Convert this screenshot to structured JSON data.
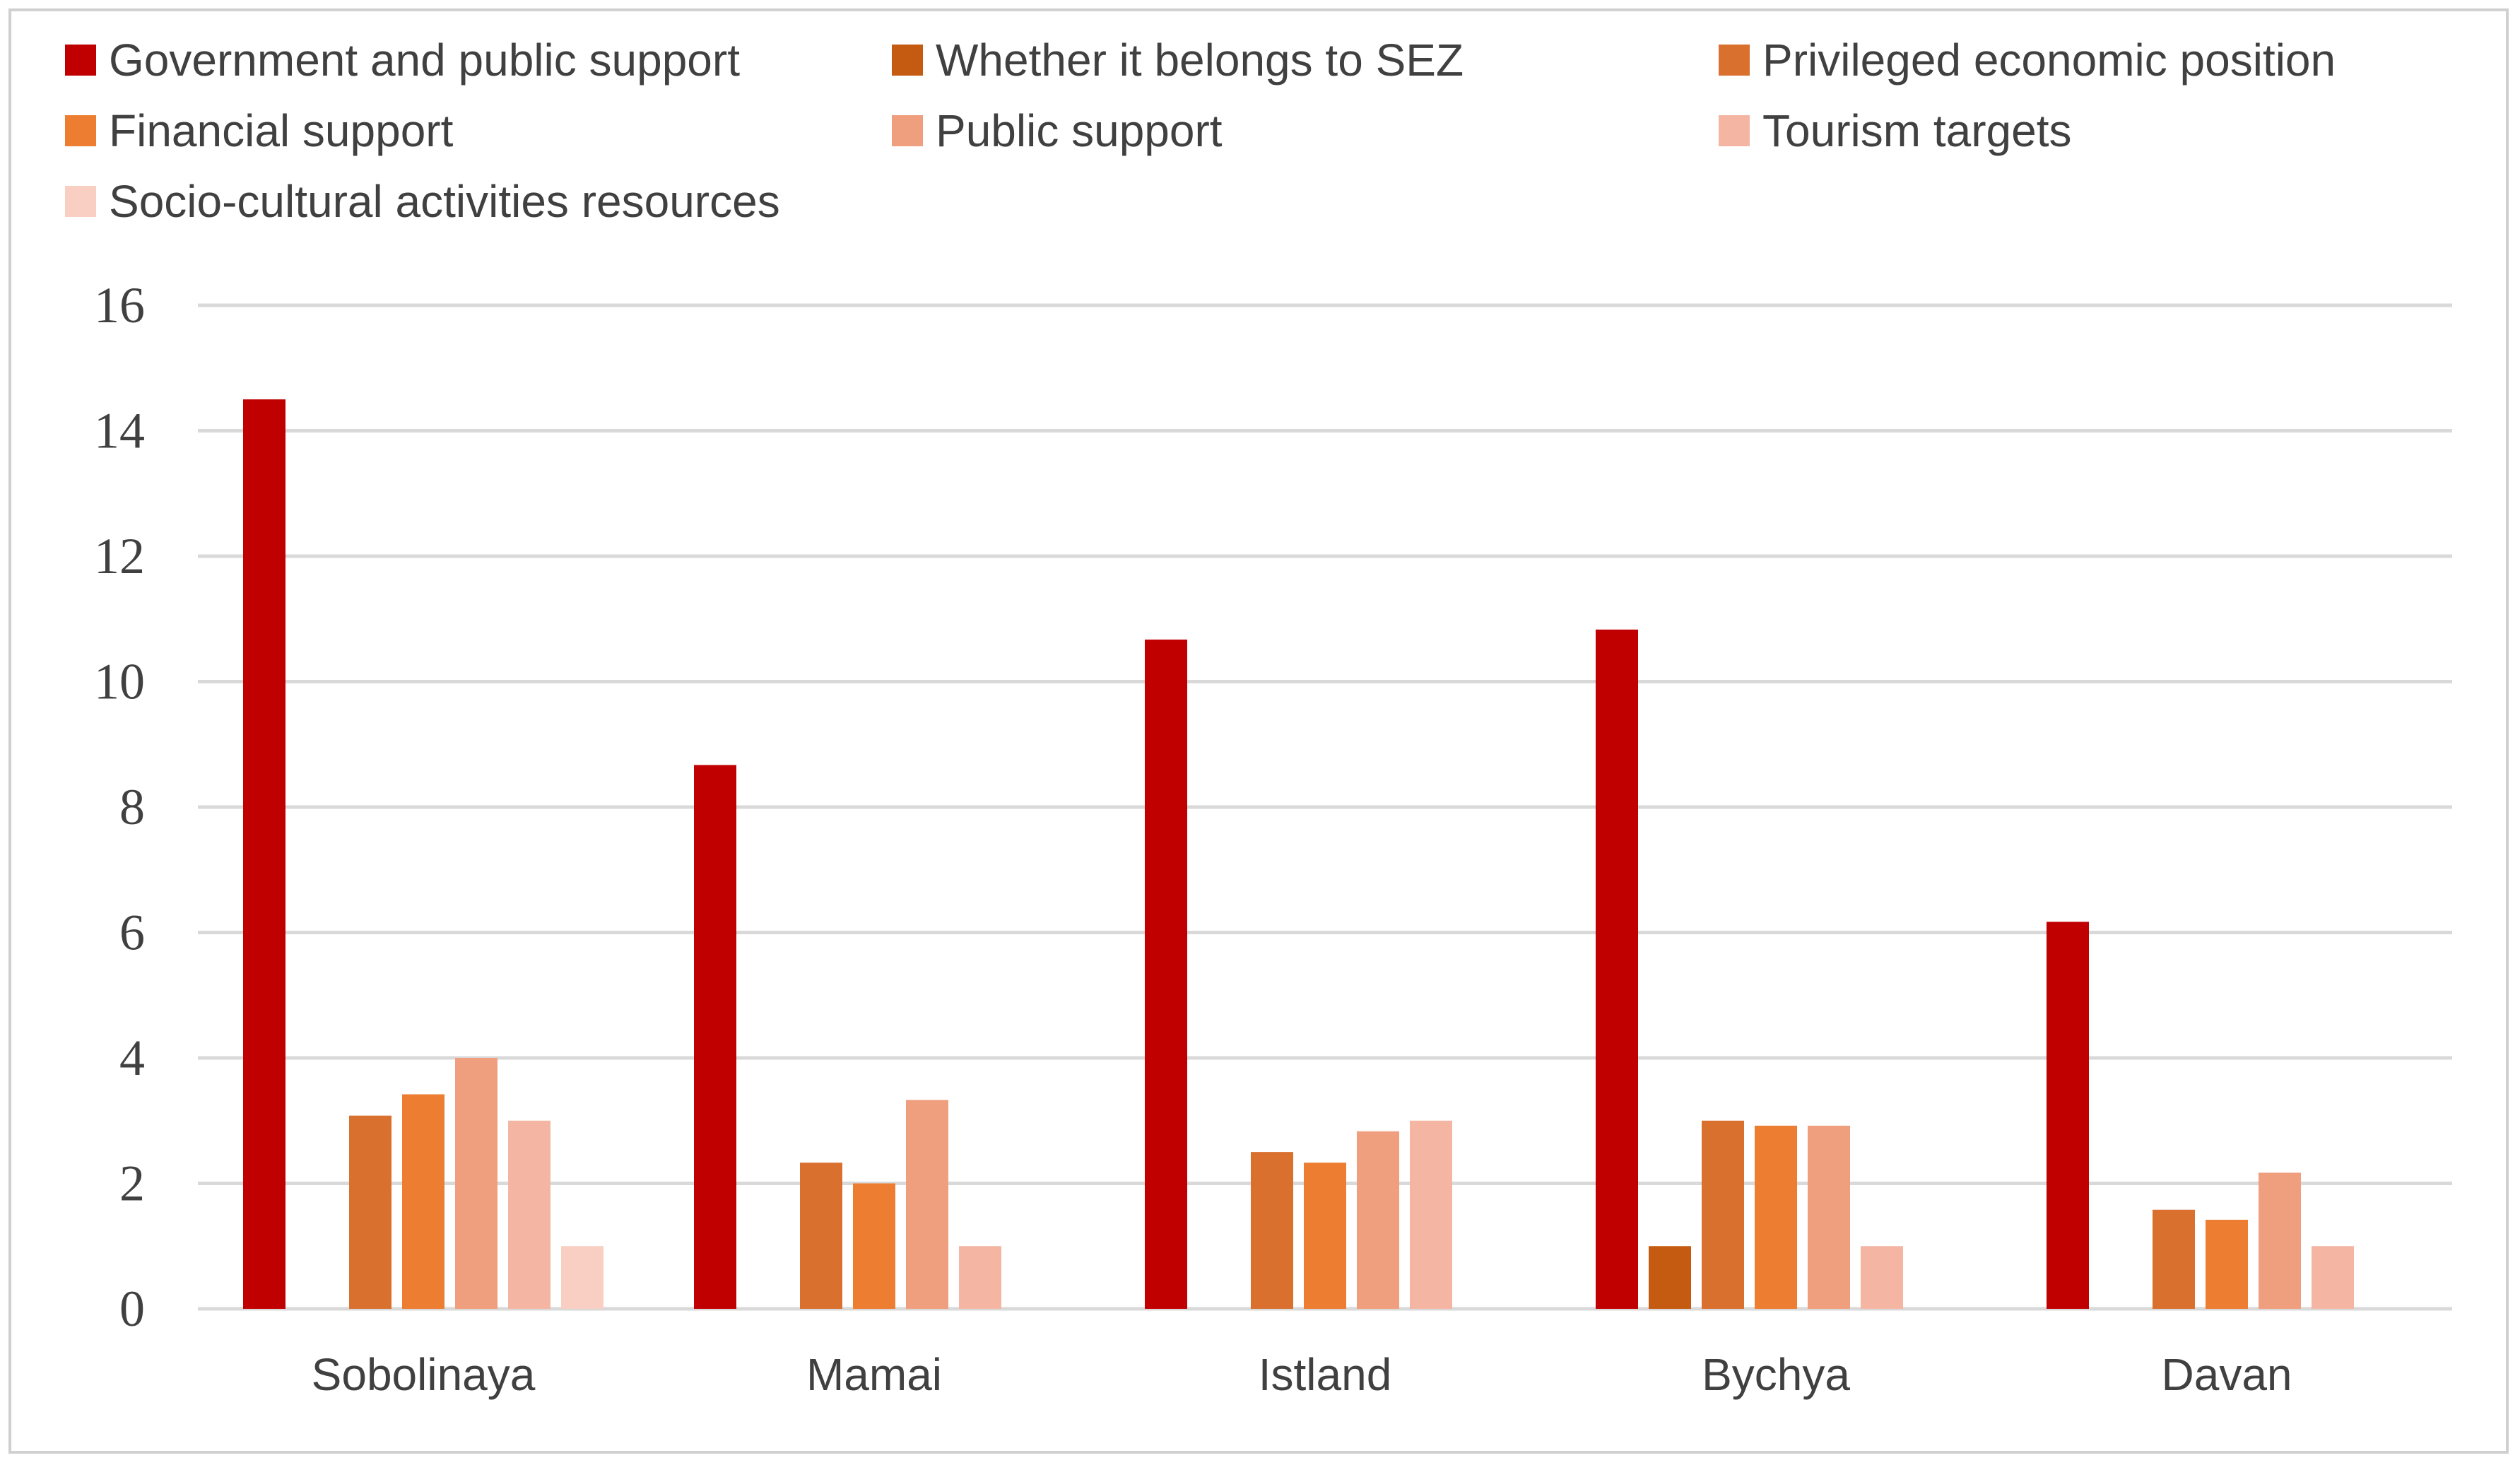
{
  "chart_data": {
    "type": "bar",
    "title": "",
    "xlabel": "",
    "ylabel": "",
    "ylim": [
      0,
      16
    ],
    "yticks": [
      0,
      2,
      4,
      6,
      8,
      10,
      12,
      14,
      16
    ],
    "grid": true,
    "legend_position": "top",
    "categories": [
      "Sobolinaya",
      "Mamai",
      "Istland",
      "Bychya",
      "Davan"
    ],
    "series": [
      {
        "name": "Government and public support",
        "color": "#c00000",
        "values": [
          14.5,
          8.67,
          10.67,
          10.83,
          6.17
        ]
      },
      {
        "name": "Whether it belongs to SEZ",
        "color": "#c55a11",
        "values": [
          0,
          0,
          0,
          1,
          0
        ]
      },
      {
        "name": "Privileged economic position",
        "color": "#d9702e",
        "values": [
          3.08,
          2.33,
          2.5,
          3,
          1.58
        ]
      },
      {
        "name": "Financial support",
        "color": "#ed7d31",
        "values": [
          3.42,
          2,
          2.33,
          2.92,
          1.42
        ]
      },
      {
        "name": "Public support",
        "color": "#f09f7e",
        "values": [
          4,
          3.33,
          2.83,
          2.92,
          2.17
        ]
      },
      {
        "name": "Tourism targets",
        "color": "#f4b6a3",
        "values": [
          3,
          1,
          3,
          1,
          1
        ]
      },
      {
        "name": "Socio-cultural activities resources",
        "color": "#f9cfc3",
        "values": [
          1,
          0,
          0,
          0,
          0
        ]
      }
    ]
  }
}
